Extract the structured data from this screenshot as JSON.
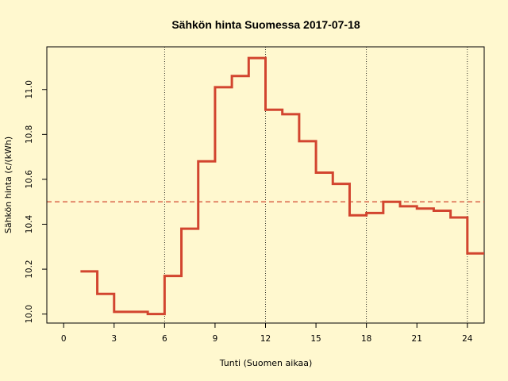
{
  "chart_data": {
    "type": "line",
    "style": "step",
    "title": "Sähkön hinta Suomessa 2017-07-18",
    "xlabel": "Tunti (Suomen aikaa)",
    "ylabel": "Sähkön hinta (c/(kWh)",
    "xlim": [
      -1,
      25
    ],
    "ylim": [
      9.96,
      11.19
    ],
    "xticks": [
      "0",
      "3",
      "6",
      "9",
      "12",
      "15",
      "18",
      "21",
      "24"
    ],
    "yticks": [
      "10.0",
      "10.2",
      "10.4",
      "10.6",
      "10.8",
      "11.0"
    ],
    "grid": "vertical dotted at 6, 12, 18, 24",
    "series": [
      {
        "color": "#d2452f",
        "x": [
          1,
          2,
          3,
          4,
          5,
          6,
          7,
          8,
          9,
          10,
          11,
          12,
          13,
          14,
          15,
          16,
          17,
          18,
          19,
          20,
          21,
          22,
          23,
          24
        ],
        "values": [
          10.19,
          10.09,
          10.01,
          10.01,
          10.0,
          10.17,
          10.38,
          10.68,
          11.01,
          11.06,
          11.14,
          10.91,
          10.89,
          10.77,
          10.63,
          10.58,
          10.44,
          10.45,
          10.5,
          10.48,
          10.47,
          10.46,
          10.43,
          10.27
        ]
      }
    ],
    "reference_line": {
      "y": 10.5,
      "style": "dashed",
      "color": "#d2452f"
    }
  }
}
